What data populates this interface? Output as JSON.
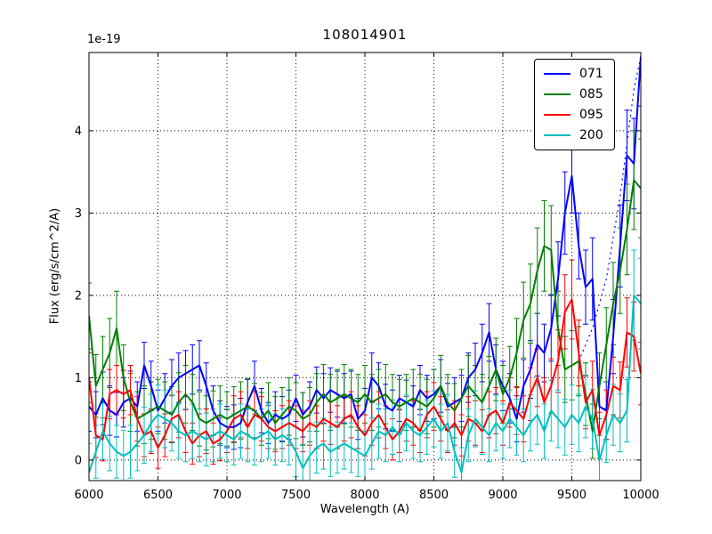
{
  "figure": {
    "background": "#ffffff"
  },
  "chart_data": {
    "type": "line",
    "title": "108014901",
    "xlabel": "Wavelength (A)",
    "ylabel": "Flux (erg/s/cm^2/A)",
    "y_offset_text": "1e-19",
    "xlim": [
      6000,
      10000
    ],
    "ylim": [
      -0.25,
      4.95
    ],
    "xticks": [
      6000,
      6500,
      7000,
      7500,
      8000,
      8500,
      9000,
      9500,
      10000
    ],
    "yticks": [
      0,
      1,
      2,
      3,
      4
    ],
    "grid": true,
    "grid_style": "dotted",
    "legend": {
      "position": "upper right",
      "entries": [
        "071",
        "085",
        "095",
        "200"
      ]
    },
    "x": [
      6000,
      6050,
      6100,
      6150,
      6200,
      6250,
      6300,
      6350,
      6400,
      6450,
      6500,
      6550,
      6600,
      6650,
      6700,
      6750,
      6800,
      6850,
      6900,
      6950,
      7000,
      7050,
      7100,
      7150,
      7200,
      7250,
      7300,
      7350,
      7400,
      7450,
      7500,
      7550,
      7600,
      7650,
      7700,
      7750,
      7800,
      7850,
      7900,
      7950,
      8000,
      8050,
      8100,
      8150,
      8200,
      8250,
      8300,
      8350,
      8400,
      8450,
      8500,
      8550,
      8600,
      8650,
      8700,
      8750,
      8800,
      8850,
      8900,
      8950,
      9000,
      9050,
      9100,
      9150,
      9200,
      9250,
      9300,
      9350,
      9400,
      9450,
      9500,
      9550,
      9600,
      9650,
      9700,
      9750,
      9800,
      9850,
      9900,
      9950,
      10000
    ],
    "series": [
      {
        "name": "071",
        "color": "#0000ff",
        "values": [
          0.65,
          0.55,
          0.75,
          0.6,
          0.55,
          0.7,
          0.75,
          0.65,
          1.15,
          0.9,
          0.6,
          0.75,
          0.9,
          1.0,
          1.05,
          1.1,
          1.15,
          0.9,
          0.6,
          0.45,
          0.4,
          0.4,
          0.45,
          0.7,
          0.9,
          0.6,
          0.45,
          0.55,
          0.5,
          0.55,
          0.75,
          0.55,
          0.65,
          0.85,
          0.75,
          0.85,
          0.8,
          0.75,
          0.8,
          0.5,
          0.6,
          1.0,
          0.9,
          0.65,
          0.6,
          0.75,
          0.7,
          0.65,
          0.85,
          0.75,
          0.8,
          0.9,
          0.65,
          0.7,
          0.75,
          1.0,
          1.1,
          1.3,
          1.55,
          1.1,
          0.9,
          0.75,
          0.5,
          0.9,
          1.1,
          1.4,
          1.3,
          1.6,
          2.2,
          3.0,
          3.45,
          2.6,
          2.1,
          2.2,
          0.65,
          0.6,
          1.5,
          2.6,
          3.7,
          3.6,
          4.9
        ],
        "err": [
          0.3,
          0.28,
          0.32,
          0.3,
          0.27,
          0.3,
          0.33,
          0.3,
          0.28,
          0.3,
          0.25,
          0.3,
          0.32,
          0.3,
          0.28,
          0.3,
          0.3,
          0.28,
          0.3,
          0.27,
          0.25,
          0.27,
          0.3,
          0.28,
          0.3,
          0.27,
          0.25,
          0.28,
          0.27,
          0.3,
          0.28,
          0.27,
          0.3,
          0.28,
          0.3,
          0.27,
          0.28,
          0.3,
          0.28,
          0.25,
          0.27,
          0.3,
          0.28,
          0.27,
          0.25,
          0.28,
          0.27,
          0.25,
          0.3,
          0.28,
          0.3,
          0.32,
          0.28,
          0.3,
          0.28,
          0.3,
          0.32,
          0.35,
          0.35,
          0.3,
          0.3,
          0.3,
          0.28,
          0.32,
          0.35,
          0.38,
          0.35,
          0.4,
          0.45,
          0.5,
          0.45,
          0.4,
          0.45,
          0.5,
          0.35,
          0.35,
          0.45,
          0.5,
          0.55,
          0.55,
          0.6
        ]
      },
      {
        "name": "085",
        "color": "#007f00",
        "values": [
          1.75,
          0.9,
          1.1,
          1.3,
          1.6,
          1.0,
          0.7,
          0.5,
          0.55,
          0.6,
          0.65,
          0.6,
          0.55,
          0.7,
          0.8,
          0.7,
          0.5,
          0.45,
          0.5,
          0.55,
          0.5,
          0.55,
          0.6,
          0.65,
          0.6,
          0.5,
          0.6,
          0.45,
          0.55,
          0.65,
          0.6,
          0.5,
          0.55,
          0.7,
          0.8,
          0.7,
          0.75,
          0.8,
          0.75,
          0.7,
          0.8,
          0.7,
          0.75,
          0.8,
          0.7,
          0.65,
          0.7,
          0.75,
          0.7,
          0.65,
          0.75,
          0.9,
          0.7,
          0.6,
          0.75,
          0.9,
          0.8,
          0.7,
          0.9,
          1.1,
          0.8,
          1.0,
          1.3,
          1.7,
          1.9,
          2.3,
          2.6,
          2.55,
          1.6,
          1.1,
          1.15,
          1.2,
          0.8,
          0.35,
          0.9,
          1.4,
          1.9,
          2.3,
          2.8,
          3.4,
          3.3
        ],
        "err": [
          0.4,
          0.38,
          0.4,
          0.42,
          0.45,
          0.4,
          0.35,
          0.33,
          0.35,
          0.35,
          0.33,
          0.35,
          0.34,
          0.36,
          0.35,
          0.34,
          0.33,
          0.33,
          0.34,
          0.35,
          0.33,
          0.34,
          0.35,
          0.34,
          0.33,
          0.32,
          0.34,
          0.32,
          0.33,
          0.35,
          0.34,
          0.32,
          0.33,
          0.35,
          0.36,
          0.34,
          0.35,
          0.36,
          0.35,
          0.34,
          0.35,
          0.34,
          0.35,
          0.36,
          0.34,
          0.33,
          0.34,
          0.35,
          0.34,
          0.33,
          0.35,
          0.37,
          0.34,
          0.33,
          0.35,
          0.37,
          0.35,
          0.34,
          0.36,
          0.38,
          0.35,
          0.38,
          0.42,
          0.46,
          0.48,
          0.52,
          0.55,
          0.54,
          0.45,
          0.4,
          0.42,
          0.42,
          0.38,
          0.33,
          0.4,
          0.45,
          0.5,
          0.52,
          0.55,
          0.6,
          0.6
        ]
      },
      {
        "name": "095",
        "color": "#ff0000",
        "values": [
          1.0,
          0.3,
          0.25,
          0.8,
          0.85,
          0.8,
          0.85,
          0.5,
          0.3,
          0.35,
          0.15,
          0.3,
          0.5,
          0.55,
          0.35,
          0.2,
          0.3,
          0.35,
          0.2,
          0.25,
          0.35,
          0.5,
          0.55,
          0.4,
          0.55,
          0.5,
          0.4,
          0.35,
          0.4,
          0.45,
          0.4,
          0.35,
          0.45,
          0.4,
          0.5,
          0.45,
          0.4,
          0.5,
          0.55,
          0.4,
          0.3,
          0.45,
          0.55,
          0.4,
          0.25,
          0.35,
          0.5,
          0.45,
          0.35,
          0.55,
          0.65,
          0.5,
          0.35,
          0.45,
          0.3,
          0.5,
          0.45,
          0.35,
          0.55,
          0.6,
          0.45,
          0.7,
          0.6,
          0.5,
          0.8,
          1.0,
          0.7,
          0.9,
          1.2,
          1.8,
          1.95,
          1.3,
          0.7,
          0.85,
          0.3,
          0.55,
          0.9,
          0.85,
          1.55,
          1.5,
          1.05
        ],
        "err": [
          0.3,
          0.27,
          0.26,
          0.3,
          0.3,
          0.29,
          0.3,
          0.27,
          0.26,
          0.27,
          0.25,
          0.26,
          0.28,
          0.28,
          0.26,
          0.25,
          0.26,
          0.27,
          0.25,
          0.26,
          0.26,
          0.28,
          0.28,
          0.26,
          0.28,
          0.27,
          0.26,
          0.25,
          0.26,
          0.27,
          0.26,
          0.25,
          0.27,
          0.26,
          0.27,
          0.26,
          0.26,
          0.27,
          0.28,
          0.26,
          0.25,
          0.27,
          0.28,
          0.26,
          0.25,
          0.26,
          0.27,
          0.27,
          0.26,
          0.28,
          0.29,
          0.27,
          0.26,
          0.27,
          0.25,
          0.27,
          0.27,
          0.26,
          0.28,
          0.28,
          0.27,
          0.3,
          0.29,
          0.28,
          0.32,
          0.35,
          0.3,
          0.33,
          0.38,
          0.45,
          0.48,
          0.4,
          0.32,
          0.35,
          0.28,
          0.3,
          0.35,
          0.34,
          0.42,
          0.42,
          0.38
        ]
      },
      {
        "name": "200",
        "color": "#00bfbf",
        "values": [
          -0.15,
          0.1,
          0.35,
          0.2,
          0.1,
          0.05,
          0.1,
          0.2,
          0.3,
          0.45,
          0.55,
          0.5,
          0.45,
          0.35,
          0.3,
          0.35,
          0.3,
          0.25,
          0.3,
          0.35,
          0.3,
          0.25,
          0.35,
          0.3,
          0.25,
          0.3,
          0.35,
          0.25,
          0.3,
          0.25,
          0.1,
          -0.1,
          0.05,
          0.15,
          0.2,
          0.1,
          0.15,
          0.2,
          0.15,
          0.1,
          0.05,
          0.2,
          0.35,
          0.3,
          0.4,
          0.3,
          0.45,
          0.35,
          0.3,
          0.4,
          0.5,
          0.35,
          0.45,
          0.1,
          -0.15,
          0.3,
          0.5,
          0.4,
          0.3,
          0.45,
          0.35,
          0.5,
          0.4,
          0.3,
          0.45,
          0.55,
          0.35,
          0.6,
          0.5,
          0.4,
          0.55,
          0.45,
          0.65,
          0.5,
          0.0,
          0.3,
          0.55,
          0.45,
          0.6,
          2.0,
          1.9
        ],
        "err": [
          0.35,
          0.32,
          0.34,
          0.33,
          0.32,
          0.31,
          0.32,
          0.33,
          0.34,
          0.35,
          0.36,
          0.35,
          0.34,
          0.33,
          0.32,
          0.33,
          0.32,
          0.32,
          0.32,
          0.33,
          0.32,
          0.31,
          0.33,
          0.32,
          0.31,
          0.32,
          0.33,
          0.31,
          0.32,
          0.31,
          0.3,
          0.29,
          0.3,
          0.31,
          0.31,
          0.3,
          0.31,
          0.31,
          0.3,
          0.3,
          0.3,
          0.31,
          0.33,
          0.32,
          0.33,
          0.32,
          0.34,
          0.33,
          0.32,
          0.33,
          0.34,
          0.33,
          0.34,
          0.31,
          0.3,
          0.32,
          0.34,
          0.33,
          0.32,
          0.34,
          0.33,
          0.35,
          0.34,
          0.32,
          0.34,
          0.36,
          0.33,
          0.37,
          0.35,
          0.34,
          0.36,
          0.35,
          0.38,
          0.36,
          0.3,
          0.33,
          0.37,
          0.35,
          0.38,
          0.55,
          0.55
        ]
      }
    ],
    "dotted_overlay": {
      "name": "071-upper",
      "color": "#0000ff",
      "linestyle": "dotted",
      "x": [
        9550,
        9650,
        9750,
        9850,
        9950,
        10000
      ],
      "y": [
        1.2,
        1.6,
        2.2,
        3.2,
        4.5,
        4.9
      ]
    }
  }
}
